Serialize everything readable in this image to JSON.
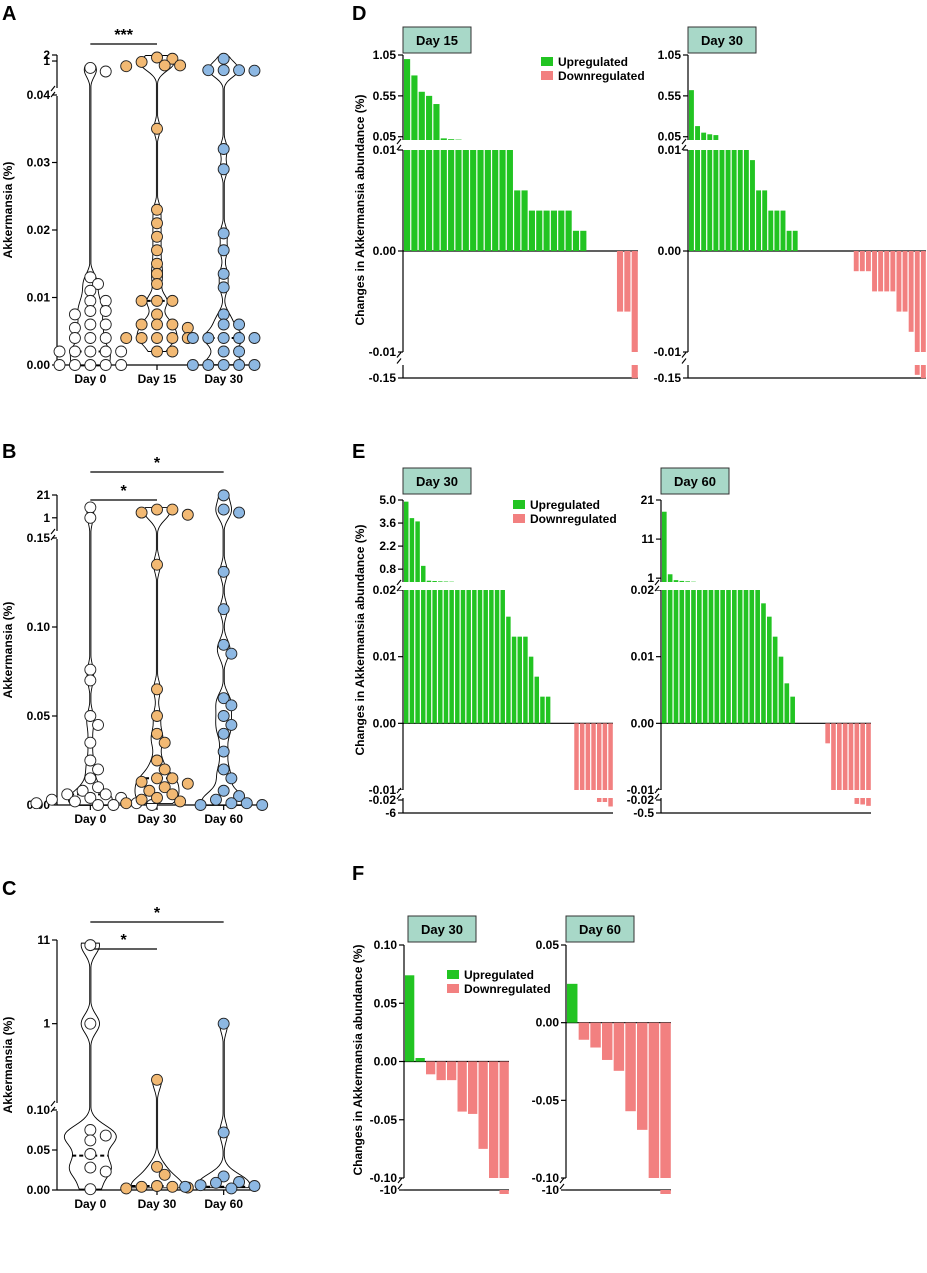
{
  "chart_data": [
    {
      "id": "A",
      "type": "violin-dot",
      "panel_label": "A",
      "ylabel": "Akkermansia (%)",
      "categories": [
        "Day 0",
        "Day 15",
        "Day 30"
      ],
      "y_ticks_lower": [
        "0.00",
        "0.01",
        "0.02",
        "0.03",
        "0.04"
      ],
      "y_ticks_upper": [
        "1",
        "2"
      ],
      "ylim_lower": [
        0,
        0.04
      ],
      "ylim_upper": [
        0.04,
        2
      ],
      "significance": [
        {
          "from": "Day 0",
          "to": "Day 15",
          "label": "***"
        }
      ],
      "series": [
        {
          "name": "Day 0",
          "color": "#ffffff",
          "median": 0.002,
          "values": [
            0.45,
            0.3,
            0.013,
            0.012,
            0.011,
            0.0095,
            0.0095,
            0.008,
            0.008,
            0.0075,
            0.006,
            0.006,
            0.0055,
            0.004,
            0.004,
            0.004,
            0.002,
            0.002,
            0.002,
            0.002,
            0.002,
            0,
            0,
            0,
            0,
            0
          ]
        },
        {
          "name": "Day 15",
          "color": "#f2b973",
          "median": 0.0095,
          "values": [
            1.5,
            1.3,
            0.9,
            0.6,
            0.6,
            0.55,
            0.035,
            0.023,
            0.021,
            0.019,
            0.017,
            0.015,
            0.0135,
            0.012,
            0.0095,
            0.0095,
            0.0095,
            0.0075,
            0.006,
            0.006,
            0.006,
            0.0055,
            0.004,
            0.004,
            0.004,
            0.004,
            0.004,
            0.002,
            0.002
          ]
        },
        {
          "name": "Day 30",
          "color": "#8db8e3",
          "median": 0.004,
          "values": [
            1.3,
            0.35,
            0.35,
            0.35,
            0.33,
            0.032,
            0.029,
            0.0195,
            0.017,
            0.0135,
            0.0115,
            0.0075,
            0.006,
            0.006,
            0.004,
            0.004,
            0.004,
            0.004,
            0.004,
            0.002,
            0.002,
            0,
            0,
            0,
            0,
            0
          ]
        }
      ]
    },
    {
      "id": "B",
      "type": "violin-dot",
      "panel_label": "B",
      "ylabel": "Akkermansia (%)",
      "categories": [
        "Day 0",
        "Day 30",
        "Day 60"
      ],
      "y_ticks_lower": [
        "0.00",
        "0.05",
        "0.10",
        "0.15"
      ],
      "y_ticks_upper": [
        "1",
        "21"
      ],
      "ylim_lower": [
        0,
        0.15
      ],
      "ylim_upper": [
        0.15,
        21
      ],
      "significance": [
        {
          "from": "Day 0",
          "to": "Day 30",
          "label": "*"
        },
        {
          "from": "Day 0",
          "to": "Day 60",
          "label": "*"
        }
      ],
      "series": [
        {
          "name": "Day 0",
          "color": "#ffffff",
          "median": 0.006,
          "values": [
            4,
            1,
            0.076,
            0.07,
            0.05,
            0.045,
            0.035,
            0.025,
            0.02,
            0.015,
            0.01,
            0.008,
            0.006,
            0.006,
            0.004,
            0.004,
            0.003,
            0.002,
            0.001,
            0.001,
            0,
            0,
            0
          ]
        },
        {
          "name": "Day 30",
          "color": "#f2b973",
          "median": 0.015,
          "values": [
            3,
            3,
            2,
            1.5,
            0.135,
            0.065,
            0.05,
            0.04,
            0.035,
            0.025,
            0.02,
            0.015,
            0.015,
            0.013,
            0.012,
            0.01,
            0.008,
            0.006,
            0.004,
            0.003,
            0.002,
            0.001
          ]
        },
        {
          "name": "Day 60",
          "color": "#8db8e3",
          "median": 0.021,
          "values": [
            20,
            3,
            2,
            0.131,
            0.11,
            0.09,
            0.085,
            0.06,
            0.056,
            0.05,
            0.045,
            0.04,
            0.03,
            0.02,
            0.015,
            0.008,
            0.005,
            0.003,
            0.001,
            0.001,
            0,
            0
          ]
        }
      ]
    },
    {
      "id": "C",
      "type": "violin-dot",
      "panel_label": "C",
      "ylabel": "Akkermansia (%)",
      "categories": [
        "Day 0",
        "Day 30",
        "Day 60"
      ],
      "y_ticks_lower": [
        "0.00",
        "0.05",
        "0.10"
      ],
      "y_ticks_upper": [
        "1",
        "11"
      ],
      "ylim_lower": [
        0,
        0.1
      ],
      "ylim_upper": [
        0.1,
        11
      ],
      "significance": [
        {
          "from": "Day 0",
          "to": "Day 30",
          "label": "*"
        },
        {
          "from": "Day 0",
          "to": "Day 60",
          "label": "*"
        }
      ],
      "series": [
        {
          "name": "Day 0",
          "color": "#ffffff",
          "median": 0.043,
          "values": [
            9.5,
            1.0,
            0.075,
            0.068,
            0.062,
            0.045,
            0.028,
            0.023,
            0.001
          ]
        },
        {
          "name": "Day 30",
          "color": "#f2b973",
          "median": 0.005,
          "values": [
            0.2,
            0.029,
            0.019,
            0.005,
            0.004,
            0.004,
            0.003,
            0.002
          ]
        },
        {
          "name": "Day 60",
          "color": "#8db8e3",
          "median": 0.004,
          "values": [
            1.0,
            0.072,
            0.017,
            0.01,
            0.009,
            0.006,
            0.005,
            0.004,
            0.002
          ]
        }
      ]
    },
    {
      "id": "D",
      "type": "bar",
      "panel_label": "D",
      "ylabel": "Changes in Akkermansia abundance (%)",
      "legend": [
        "Upregulated",
        "Downregulated"
      ],
      "colors": {
        "up": "#22c422",
        "down": "#f28080"
      },
      "subplots": [
        {
          "title": "Day 15",
          "upper_ticks": [
            "0.05",
            "0.55",
            "1.05"
          ],
          "upper_range": [
            0.01,
            1.05
          ],
          "lower_ticks": [
            "-0.01",
            "0.00",
            "0.01"
          ],
          "lower_range": [
            -0.01,
            0.01
          ],
          "bottom_ticks": [
            "-0.15"
          ],
          "bottom_range": [
            -0.15,
            -0.01
          ],
          "values": [
            1.0,
            0.8,
            0.6,
            0.55,
            0.45,
            0.03,
            0.02,
            0.015,
            0.012,
            0.011,
            0.011,
            0.01,
            0.01,
            0.01,
            0.01,
            0.006,
            0.006,
            0.004,
            0.004,
            0.004,
            0.004,
            0.004,
            0.004,
            0.002,
            0.002,
            0,
            0,
            0,
            0,
            -0.006,
            -0.006,
            -0.12
          ]
        },
        {
          "title": "Day 30",
          "upper_ticks": [
            "0.05",
            "0.55",
            "1.05"
          ],
          "upper_range": [
            0.01,
            1.05
          ],
          "lower_ticks": [
            "-0.01",
            "0.00",
            "0.01"
          ],
          "lower_range": [
            -0.01,
            0.01
          ],
          "bottom_ticks": [
            "-0.15"
          ],
          "bottom_range": [
            -0.15,
            -0.01
          ],
          "values": [
            0.62,
            0.18,
            0.1,
            0.08,
            0.07,
            0.01,
            0.01,
            0.01,
            0.01,
            0.01,
            0.009,
            0.006,
            0.006,
            0.004,
            0.004,
            0.004,
            0.002,
            0.002,
            0,
            0,
            0,
            0,
            0,
            0,
            0,
            0,
            0,
            -0.002,
            -0.002,
            -0.002,
            -0.004,
            -0.004,
            -0.004,
            -0.004,
            -0.006,
            -0.006,
            -0.008,
            -0.08,
            -0.12
          ]
        }
      ]
    },
    {
      "id": "E",
      "type": "bar",
      "panel_label": "E",
      "ylabel": "Changes in Akkermansia abundance (%)",
      "legend": [
        "Upregulated",
        "Downregulated"
      ],
      "colors": {
        "up": "#22c422",
        "down": "#f28080"
      },
      "subplots": [
        {
          "title": "Day 30",
          "upper_ticks": [
            "0.8",
            "2.2",
            "3.6",
            "5.0"
          ],
          "upper_range": [
            0.02,
            5.0
          ],
          "lower_ticks": [
            "-0.01",
            "0.00",
            "0.01",
            "0.02"
          ],
          "lower_range": [
            -0.01,
            0.02
          ],
          "bottom_ticks": [
            "-0.02",
            "-6"
          ],
          "bottom_range": [
            -6,
            -0.02
          ],
          "values": [
            4.9,
            3.9,
            3.7,
            1.0,
            0.1,
            0.08,
            0.06,
            0.05,
            0.04,
            0.02,
            0.02,
            0.02,
            0.02,
            0.02,
            0.02,
            0.02,
            0.02,
            0.02,
            0.016,
            0.013,
            0.013,
            0.013,
            0.01,
            0.007,
            0.004,
            0.004,
            0,
            0,
            0,
            0,
            -0.01,
            -0.01,
            -0.01,
            -0.01,
            -0.012,
            -0.015,
            -2.0
          ]
        },
        {
          "title": "Day 60",
          "upper_ticks": [
            "1",
            "11",
            "21"
          ],
          "upper_range": [
            0.02,
            21
          ],
          "lower_ticks": [
            "-0.01",
            "0.00",
            "0.01",
            "0.02"
          ],
          "lower_range": [
            -0.01,
            0.02
          ],
          "bottom_ticks": [
            "-0.02",
            "-0.5"
          ],
          "bottom_range": [
            -0.5,
            -0.02
          ],
          "values": [
            18.0,
            2.0,
            0.5,
            0.3,
            0.2,
            0.1,
            0.05,
            0.02,
            0.02,
            0.02,
            0.02,
            0.02,
            0.02,
            0.02,
            0.02,
            0.02,
            0.02,
            0.018,
            0.016,
            0.013,
            0.01,
            0.006,
            0.004,
            0,
            0,
            0,
            0,
            0,
            -0.003,
            -0.01,
            -0.01,
            -0.01,
            -0.01,
            -0.08,
            -0.1,
            -0.15
          ]
        }
      ]
    },
    {
      "id": "F",
      "type": "bar",
      "panel_label": "F",
      "ylabel": "Changes in Akkermansia abundance (%)",
      "legend": [
        "Upregulated",
        "Downregulated"
      ],
      "colors": {
        "up": "#22c422",
        "down": "#f28080"
      },
      "subplots": [
        {
          "title": "Day 30",
          "upper_ticks": [
            "-0.10",
            "-0.05",
            "0.00",
            "0.05",
            "0.10"
          ],
          "upper_range": [
            -0.1,
            0.1
          ],
          "bottom_ticks": [
            "-10"
          ],
          "bottom_range": [
            -10,
            -0.1
          ],
          "values": [
            0.074,
            0.003,
            -0.011,
            -0.016,
            -0.016,
            -0.043,
            -0.045,
            -0.075,
            -0.1,
            -7
          ]
        },
        {
          "title": "Day 60",
          "upper_ticks": [
            "-0.10",
            "-0.05",
            "0.00",
            "0.05"
          ],
          "upper_range": [
            -0.1,
            0.05
          ],
          "bottom_ticks": [
            "-10"
          ],
          "bottom_range": [
            -10,
            -0.1
          ],
          "values": [
            0.025,
            -0.011,
            -0.016,
            -0.024,
            -0.031,
            -0.057,
            -0.069,
            -0.1,
            -7
          ]
        }
      ]
    }
  ]
}
